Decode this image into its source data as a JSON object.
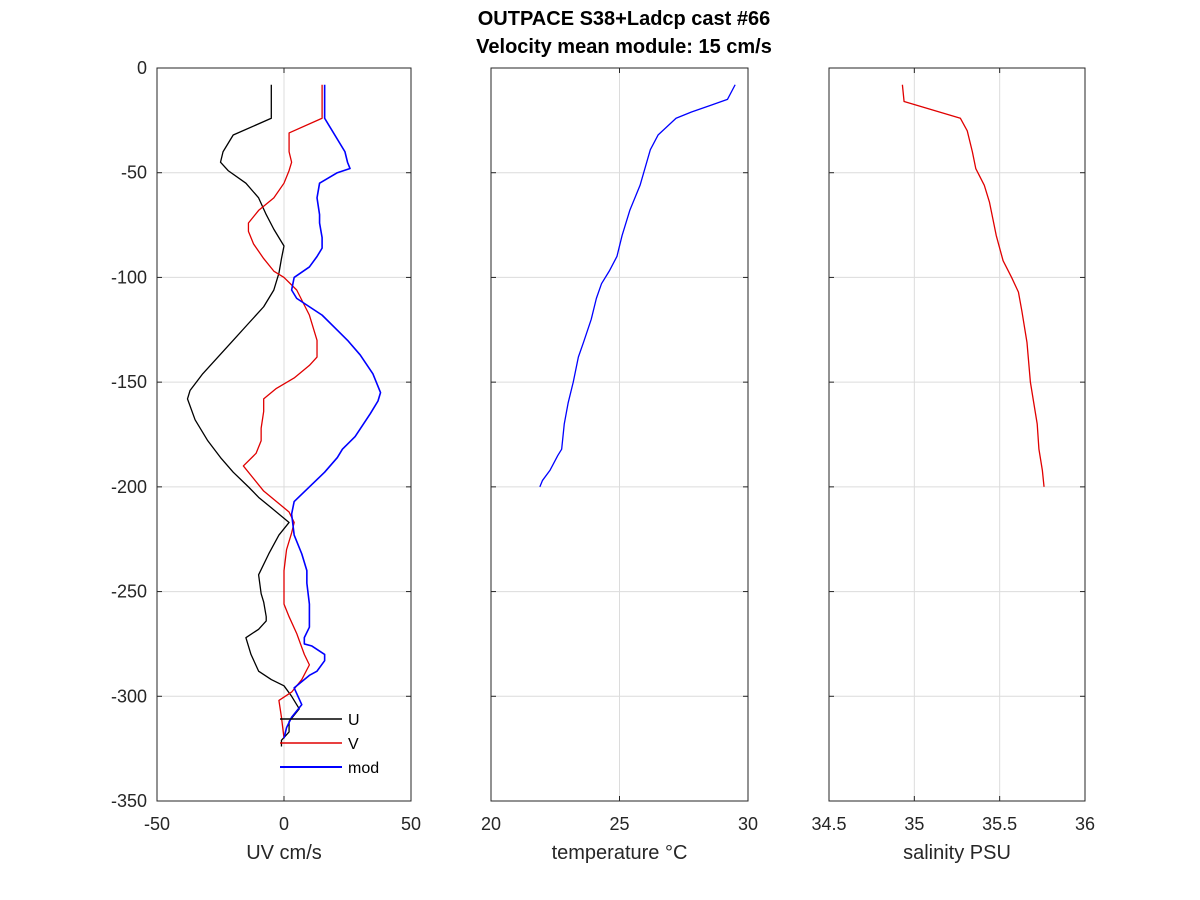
{
  "chart_data": {
    "title_lines": [
      "OUTPACE S38+Ladcp cast #66",
      "Velocity mean module:  15 cm/s"
    ],
    "panels": [
      {
        "type": "line",
        "xlabel": "UV cm/s",
        "xlim": [
          -50,
          50
        ],
        "xticks": [
          -50,
          0,
          50
        ],
        "ylim": [
          -350,
          0
        ],
        "yticks": [
          0,
          -50,
          -100,
          -150,
          -200,
          -250,
          -300,
          -350
        ],
        "grid": true,
        "show_yticklabels": true,
        "legend": {
          "placement": "bottom-right",
          "entries": [
            "U",
            "V",
            "mod"
          ]
        },
        "series": [
          {
            "name": "U",
            "color": "#000000",
            "x": [
              -5,
              -5,
              -20,
              -24,
              -25,
              -22,
              -15,
              -10,
              -7,
              -4,
              0,
              -1,
              -2,
              -4,
              -8,
              -14,
              -20,
              -26,
              -32,
              -37,
              -38,
              -35,
              -30,
              -25,
              -20,
              -14,
              -10,
              -5,
              2,
              -2,
              -6,
              -10,
              -9,
              -8,
              -7,
              -7,
              -10,
              -15,
              -13,
              -10,
              -5,
              0,
              3,
              6,
              2,
              2,
              -1,
              -1
            ],
            "y": [
              -8,
              -24,
              -32,
              -40,
              -45,
              -49,
              -55,
              -62,
              -70,
              -77,
              -85,
              -91,
              -98,
              -106,
              -114,
              -122,
              -130,
              -138,
              -146,
              -154,
              -158,
              -168,
              -178,
              -186,
              -193,
              -200,
              -205,
              -210,
              -217,
              -223,
              -232,
              -242,
              -251,
              -255,
              -262,
              -264,
              -268,
              -272,
              -280,
              -288,
              -292,
              -295,
              -300,
              -306,
              -312,
              -317,
              -321,
              -324
            ]
          },
          {
            "name": "V",
            "color": "#e00000",
            "x": [
              15,
              15,
              2,
              2,
              3,
              2,
              0,
              -4,
              -10,
              -14,
              -14,
              -12,
              -8,
              -4,
              0,
              5,
              10,
              13,
              13,
              10,
              4,
              -3,
              -8,
              -8,
              -9,
              -9,
              -11,
              -16,
              -12,
              -8,
              -3,
              2,
              4,
              3,
              1,
              0,
              0,
              0,
              2,
              5,
              8,
              10,
              7,
              3,
              -2,
              -1,
              0
            ],
            "y": [
              -8,
              -24,
              -31,
              -40,
              -45,
              -49,
              -55,
              -62,
              -68,
              -74,
              -78,
              -84,
              -91,
              -97,
              -100,
              -106,
              -118,
              -130,
              -138,
              -142,
              -148,
              -153,
              -158,
              -164,
              -172,
              -178,
              -184,
              -190,
              -196,
              -202,
              -207,
              -212,
              -217,
              -222,
              -230,
              -240,
              -250,
              -256,
              -262,
              -270,
              -280,
              -285,
              -292,
              -298,
              -302,
              -310,
              -320
            ]
          },
          {
            "name": "mod",
            "color": "#0000ff",
            "x": [
              16,
              16,
              24,
              25,
              26,
              21,
              14,
              13,
              14,
              14,
              15,
              15,
              13,
              10,
              4,
              3,
              5,
              15,
              20,
              25,
              30,
              35,
              38,
              37,
              34,
              28,
              23,
              21,
              16,
              4,
              3,
              4,
              7,
              9,
              9,
              10,
              10,
              10,
              8,
              8,
              11,
              16,
              16,
              13,
              10,
              4,
              7,
              3,
              1,
              0
            ],
            "y": [
              -8,
              -24,
              -40,
              -45,
              -48,
              -50,
              -55,
              -62,
              -70,
              -74,
              -81,
              -86,
              -90,
              -95,
              -100,
              -106,
              -110,
              -118,
              -124,
              -130,
              -137,
              -146,
              -155,
              -159,
              -165,
              -176,
              -182,
              -186,
              -193,
              -207,
              -213,
              -223,
              -232,
              -240,
              -246,
              -256,
              -262,
              -267,
              -272,
              -275,
              -276,
              -280,
              -283,
              -288,
              -290,
              -296,
              -304,
              -310,
              -315,
              -320
            ]
          }
        ]
      },
      {
        "type": "line",
        "xlabel": "temperature °C",
        "xlim": [
          20,
          30
        ],
        "xticks": [
          20,
          25,
          30
        ],
        "ylim": [
          -350,
          0
        ],
        "yticks": [
          0,
          -50,
          -100,
          -150,
          -200,
          -250,
          -300,
          -350
        ],
        "grid": true,
        "show_yticklabels": false,
        "series": [
          {
            "name": "",
            "color": "#0000ff",
            "x": [
              29.5,
              29.2,
              28.5,
              27.8,
              27.2,
              26.5,
              26.2,
              25.8,
              25.4,
              25.1,
              24.9,
              24.6,
              24.3,
              24.1,
              23.9,
              23.6,
              23.4,
              23.2,
              23.0,
              22.85,
              22.75,
              22.6,
              22.3,
              22.0,
              21.9
            ],
            "y": [
              -8,
              -15,
              -18,
              -21,
              -24,
              -32,
              -39,
              -56,
              -68,
              -80,
              -90,
              -97,
              -103,
              -110,
              -120,
              -131,
              -138,
              -150,
              -160,
              -170,
              -182,
              -185,
              -192,
              -197,
              -200
            ]
          }
        ]
      },
      {
        "type": "line",
        "xlabel": "salinity PSU",
        "xlim": [
          34.5,
          36
        ],
        "xticks": [
          34.5,
          35,
          35.5,
          36
        ],
        "ylim": [
          -350,
          0
        ],
        "yticks": [
          0,
          -50,
          -100,
          -150,
          -200,
          -250,
          -300,
          -350
        ],
        "grid": true,
        "show_yticklabels": false,
        "series": [
          {
            "name": "",
            "color": "#e00000",
            "x": [
              34.93,
              34.94,
              35.27,
              35.31,
              35.34,
              35.36,
              35.41,
              35.44,
              35.46,
              35.48,
              35.52,
              35.57,
              35.61,
              35.63,
              35.66,
              35.68,
              35.7,
              35.72,
              35.73,
              35.75,
              35.76
            ],
            "y": [
              -8,
              -16,
              -24,
              -30,
              -40,
              -48,
              -56,
              -64,
              -72,
              -80,
              -92,
              -100,
              -107,
              -116,
              -131,
              -150,
              -160,
              -170,
              -182,
              -192,
              -200
            ]
          }
        ]
      }
    ]
  }
}
